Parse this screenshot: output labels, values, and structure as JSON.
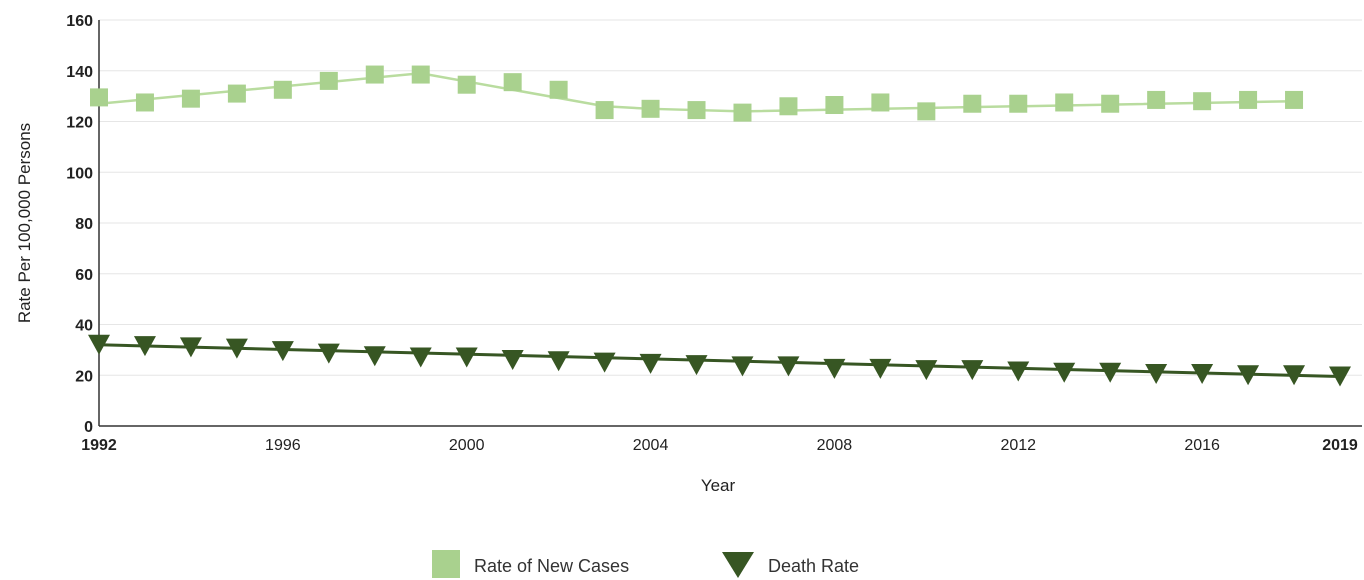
{
  "chart_data": {
    "type": "line",
    "title": "",
    "xlabel": "Year",
    "ylabel": "Rate Per 100,000 Persons",
    "xlim": [
      1992,
      2019
    ],
    "ylim": [
      0,
      160
    ],
    "yticks": [
      0,
      20,
      40,
      60,
      80,
      100,
      120,
      140,
      160
    ],
    "xticks": [
      {
        "value": 1992,
        "label": "1992",
        "bold": true
      },
      {
        "value": 1996,
        "label": "1996",
        "bold": false
      },
      {
        "value": 2000,
        "label": "2000",
        "bold": false
      },
      {
        "value": 2004,
        "label": "2004",
        "bold": false
      },
      {
        "value": 2008,
        "label": "2008",
        "bold": false
      },
      {
        "value": 2012,
        "label": "2012",
        "bold": false
      },
      {
        "value": 2016,
        "label": "2016",
        "bold": false
      },
      {
        "value": 2019,
        "label": "2019",
        "bold": true
      }
    ],
    "grid": true,
    "legend_position": "bottom",
    "series": [
      {
        "name": "Rate of New Cases",
        "marker": "square",
        "color": "#a9d18e",
        "line_color": "#b9dc9f",
        "line_x": [
          1992,
          1999,
          2003,
          2004,
          2006,
          2018
        ],
        "line_y": [
          127,
          139,
          126,
          125,
          124,
          128
        ],
        "x": [
          1992,
          1993,
          1994,
          1995,
          1996,
          1997,
          1998,
          1999,
          2000,
          2001,
          2002,
          2003,
          2004,
          2005,
          2006,
          2007,
          2008,
          2009,
          2010,
          2011,
          2012,
          2013,
          2014,
          2015,
          2016,
          2017,
          2018
        ],
        "y": [
          129.5,
          127.5,
          129,
          131,
          132.5,
          136,
          138.5,
          138.5,
          134.5,
          135.5,
          132.5,
          124.5,
          125,
          124.5,
          123.5,
          126,
          126.5,
          127.5,
          124,
          127,
          127,
          127.5,
          127,
          128.5,
          128,
          128.5,
          128.5
        ]
      },
      {
        "name": "Death Rate",
        "marker": "triangle-down",
        "color": "#375623",
        "line_color": "#375623",
        "line_x": [
          1992,
          2019
        ],
        "line_y": [
          32,
          19.5
        ],
        "x": [
          1992,
          1993,
          1994,
          1995,
          1996,
          1997,
          1998,
          1999,
          2000,
          2001,
          2002,
          2003,
          2004,
          2005,
          2006,
          2007,
          2008,
          2009,
          2010,
          2011,
          2012,
          2013,
          2014,
          2015,
          2016,
          2017,
          2018,
          2019
        ],
        "y": [
          32,
          31.5,
          31,
          30.5,
          29.5,
          28.5,
          27.5,
          27,
          27,
          26,
          25.5,
          25,
          24.5,
          24,
          23.5,
          23.5,
          22.5,
          22.5,
          22,
          22,
          21.5,
          21,
          21,
          20.5,
          20.5,
          20,
          20,
          19.5
        ]
      }
    ]
  }
}
